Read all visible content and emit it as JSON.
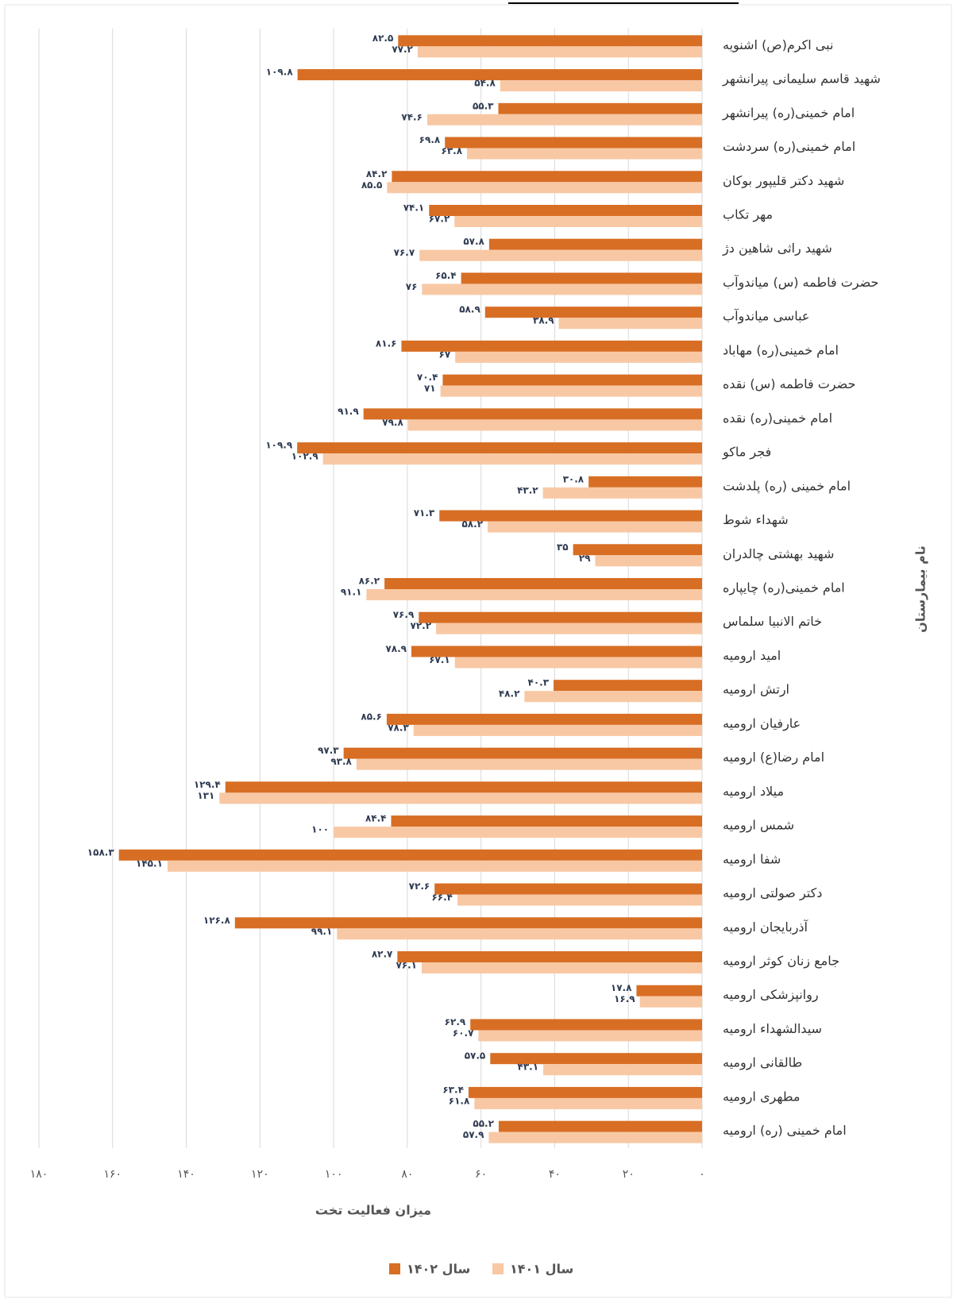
{
  "chart_data": {
    "type": "bar",
    "orientation": "horizontal",
    "xaxis_reversed": true,
    "x_label": "میزان فعالیت تخت",
    "y_label": "نام بیمارستان",
    "categories": [
      "نبی اکرم(ص) اشنویه",
      "شهید قاسم سلیمانی پیرانشهر",
      "امام خمینی(ره) پیرانشهر",
      "امام خمینی(ره) سردشت",
      "شهید دکتر قلیپور بوکان",
      "مهر تکاب",
      "شهید راثی شاهین دژ",
      "حضرت فاطمه (س) میاندوآب",
      "عباسی میاندوآب",
      "امام خمینی(ره) مهاباد",
      "حضرت فاطمه (س) نقده",
      "امام خمینی(ره) نقده",
      "فجر ماکو",
      "امام خمینی (ره) پلدشت",
      "شهداء شوط",
      "شهید بهشتی چالدران",
      "امام خمینی(ره) چایپاره",
      "خاتم الانبیا سلماس",
      "امید ارومیه",
      "ارتش ارومیه",
      "عارفیان ارومیه",
      "امام رضا(ع) ارومیه",
      "میلاد ارومیه",
      "شمس ارومیه",
      "شفا ارومیه",
      "دکتر صولتی ارومیه",
      "آذربایجان ارومیه",
      "جامع زنان کوثر ارومیه",
      "روانپزشکی ارومیه",
      "سیدالشهداء ارومیه",
      "طالقانی ارومیه",
      "مطهری ارومیه",
      "امام خمینی (ره) ارومیه"
    ],
    "series": [
      {
        "name": "سال ۱۴۰۲",
        "color": "#d86e24",
        "values": [
          82.5,
          109.8,
          55.3,
          69.8,
          84.2,
          74.1,
          57.8,
          65.4,
          58.9,
          81.6,
          70.4,
          91.9,
          109.9,
          30.8,
          71.3,
          35,
          86.2,
          76.9,
          78.9,
          40.3,
          85.6,
          97.3,
          129.4,
          84.4,
          158.3,
          72.6,
          126.8,
          82.7,
          17.8,
          62.9,
          57.5,
          63.4,
          55.2
        ],
        "value_labels": [
          "۸۲.۵",
          "۱۰۹.۸",
          "۵۵.۳",
          "۶۹.۸",
          "۸۴.۲",
          "۷۴.۱",
          "۵۷.۸",
          "۶۵.۴",
          "۵۸.۹",
          "۸۱.۶",
          "۷۰.۴",
          "۹۱.۹",
          "۱۰۹.۹",
          "۳۰.۸",
          "۷۱.۳",
          "۳۵",
          "۸۶.۲",
          "۷۶.۹",
          "۷۸.۹",
          "۴۰.۳",
          "۸۵.۶",
          "۹۷.۳",
          "۱۲۹.۴",
          "۸۴.۴",
          "۱۵۸.۳",
          "۷۲.۶",
          "۱۲۶.۸",
          "۸۲.۷",
          "۱۷.۸",
          "۶۲.۹",
          "۵۷.۵",
          "۶۳.۴",
          "۵۵.۲"
        ]
      },
      {
        "name": "سال ۱۴۰۱",
        "color": "#f8c8a4",
        "values": [
          77.2,
          54.8,
          74.6,
          63.8,
          85.5,
          67.2,
          76.7,
          76,
          38.9,
          67,
          71,
          79.8,
          102.9,
          43.2,
          58.2,
          29,
          91.1,
          72.2,
          67.1,
          48.2,
          78.3,
          93.8,
          131,
          100,
          145.1,
          66.4,
          99.1,
          76.1,
          16.9,
          60.7,
          43.1,
          61.8,
          57.9
        ],
        "value_labels": [
          "۷۷.۲",
          "۵۴.۸",
          "۷۴.۶",
          "۶۳.۸",
          "۸۵.۵",
          "۶۷.۲",
          "۷۶.۷",
          "۷۶",
          "۳۸.۹",
          "۶۷",
          "۷۱",
          "۷۹.۸",
          "۱۰۲.۹",
          "۴۳.۲",
          "۵۸.۲",
          "۲۹",
          "۹۱.۱",
          "۷۲.۲",
          "۶۷.۱",
          "۴۸.۲",
          "۷۸.۳",
          "۹۳.۸",
          "۱۳۱",
          "۱۰۰",
          "۱۴۵.۱",
          "۶۶.۴",
          "۹۹.۱",
          "۷۶.۱",
          "۱۶.۹",
          "۶۰.۷",
          "۴۳.۱",
          "۶۱.۸",
          "۵۷.۹"
        ]
      }
    ],
    "xlim": [
      0,
      180
    ],
    "xticks": [
      {
        "value": 0,
        "label": "۰"
      },
      {
        "value": 20,
        "label": "۲۰"
      },
      {
        "value": 40,
        "label": "۴۰"
      },
      {
        "value": 60,
        "label": "۶۰"
      },
      {
        "value": 80,
        "label": "۸۰"
      },
      {
        "value": 100,
        "label": "۱۰۰"
      },
      {
        "value": 120,
        "label": "۱۲۰"
      },
      {
        "value": 140,
        "label": "۱۴۰"
      },
      {
        "value": 160,
        "label": "۱۶۰"
      },
      {
        "value": 180,
        "label": "۱۸۰"
      }
    ],
    "grid": true
  }
}
